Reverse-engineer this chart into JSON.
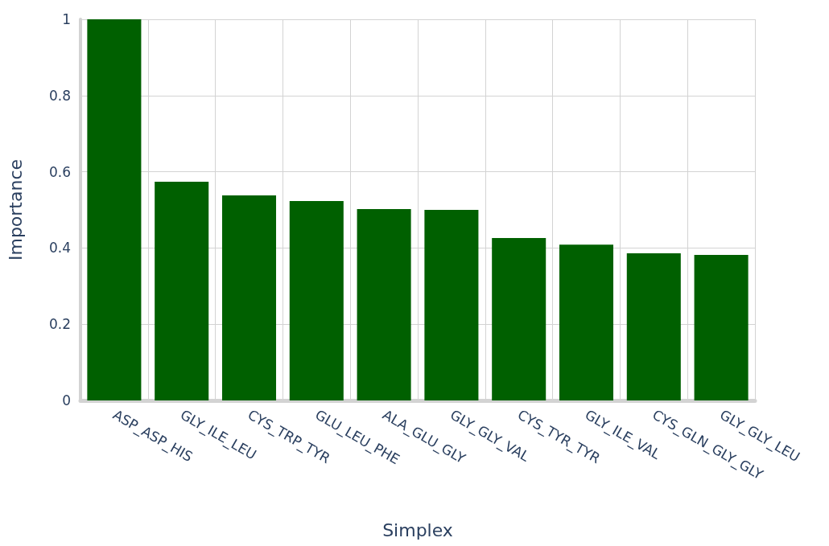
{
  "chart_data": {
    "type": "bar",
    "xlabel": "Simplex",
    "ylabel": "Importance",
    "categories": [
      "ASP_ASP_HIS",
      "GLY_ILE_LEU",
      "CYS_TRP_TYR",
      "GLU_LEU_PHE",
      "ALA_GLU_GLY",
      "GLY_GLY_VAL",
      "CYS_TYR_TYR",
      "GLY_ILE_VAL",
      "CYS_GLN_GLY_GLY",
      "GLY_GLY_LEU"
    ],
    "values": [
      1.0,
      0.574,
      0.538,
      0.523,
      0.502,
      0.5,
      0.426,
      0.409,
      0.386,
      0.382
    ],
    "color": "#006000",
    "ylim": [
      0,
      1
    ],
    "yticks": [
      0,
      0.2,
      0.4,
      0.6,
      0.8,
      1
    ],
    "grid": true
  }
}
